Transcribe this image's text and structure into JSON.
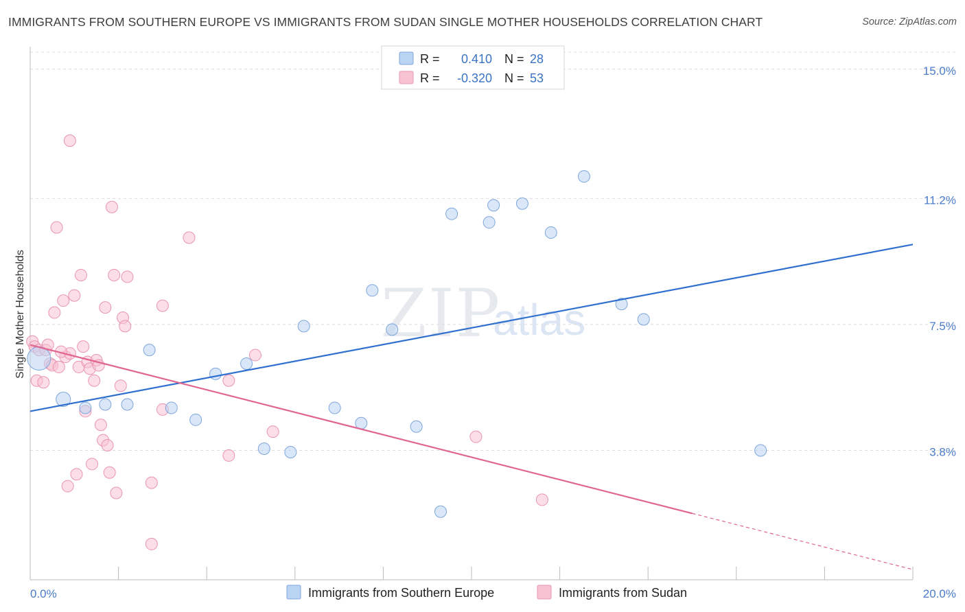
{
  "header": {
    "title": "IMMIGRANTS FROM SOUTHERN EUROPE VS IMMIGRANTS FROM SUDAN SINGLE MOTHER HOUSEHOLDS CORRELATION CHART",
    "source": "Source: ZipAtlas.com"
  },
  "watermark": {
    "zip": "ZIP",
    "atlas": "atlas"
  },
  "legend": {
    "rows": [
      {
        "r_label": "R =",
        "r_value": "0.410",
        "n_label": "N =",
        "n_value": "28"
      },
      {
        "r_label": "R =",
        "r_value": "-0.320",
        "n_label": "N =",
        "n_value": "53"
      }
    ]
  },
  "bottom_legend": {
    "series_a": "Immigrants from Southern Europe",
    "series_b": "Immigrants from Sudan"
  },
  "colors": {
    "blue_fill": "#b9d3f2",
    "blue_stroke": "#7ea6dc",
    "blue_line": "#2f6fce",
    "pink_fill": "#f7c3d3",
    "pink_stroke": "#e995b1",
    "pink_line": "#e06592",
    "grid": "#dcdcdc",
    "axis_label": "#4a7cc9"
  },
  "chart_data": {
    "type": "scatter",
    "title": "IMMIGRANTS FROM SOUTHERN EUROPE VS IMMIGRANTS FROM SUDAN SINGLE MOTHER HOUSEHOLDS CORRELATION CHART",
    "xlabel": "",
    "ylabel": "Single Mother Households",
    "xlim": [
      0,
      20
    ],
    "ylim": [
      0,
      15.5
    ],
    "x_tick_labels": [
      "0.0%",
      "20.0%"
    ],
    "y_ticks": [
      3.8,
      7.5,
      11.2,
      15.0
    ],
    "y_tick_labels": [
      "3.8%",
      "7.5%",
      "11.2%",
      "15.0%"
    ],
    "series": [
      {
        "name": "Immigrants from Southern Europe",
        "color": "#b9d3f2",
        "R": 0.41,
        "N": 28,
        "points": [
          [
            0.2,
            6.5,
            "large"
          ],
          [
            0.75,
            5.3,
            "mid"
          ],
          [
            1.25,
            5.05
          ],
          [
            1.7,
            5.15
          ],
          [
            2.2,
            5.15
          ],
          [
            2.7,
            6.75
          ],
          [
            3.2,
            5.05
          ],
          [
            3.75,
            4.7
          ],
          [
            4.2,
            6.05
          ],
          [
            4.9,
            6.35
          ],
          [
            5.3,
            3.85
          ],
          [
            5.9,
            3.75
          ],
          [
            6.2,
            7.45
          ],
          [
            6.9,
            5.05
          ],
          [
            7.5,
            4.6
          ],
          [
            7.75,
            8.5
          ],
          [
            8.2,
            7.35
          ],
          [
            8.75,
            4.5
          ],
          [
            9.3,
            2.0
          ],
          [
            9.55,
            10.75
          ],
          [
            10.4,
            10.5
          ],
          [
            10.5,
            11.0
          ],
          [
            11.15,
            11.05
          ],
          [
            11.8,
            10.2
          ],
          [
            12.55,
            11.85
          ],
          [
            13.4,
            8.1
          ],
          [
            13.9,
            7.65
          ],
          [
            16.55,
            3.8
          ]
        ],
        "trend": {
          "x": [
            0,
            20
          ],
          "y": [
            4.95,
            9.85
          ]
        }
      },
      {
        "name": "Immigrants from Sudan",
        "color": "#f7c3d3",
        "R": -0.32,
        "N": 53,
        "points": [
          [
            0.05,
            7.0
          ],
          [
            0.1,
            6.85
          ],
          [
            0.15,
            5.85
          ],
          [
            0.2,
            6.75
          ],
          [
            0.3,
            5.8
          ],
          [
            0.35,
            6.75
          ],
          [
            0.4,
            6.9
          ],
          [
            0.45,
            6.35
          ],
          [
            0.5,
            6.3
          ],
          [
            0.55,
            7.85
          ],
          [
            0.6,
            10.35
          ],
          [
            0.65,
            6.25
          ],
          [
            0.75,
            8.2
          ],
          [
            0.8,
            6.55
          ],
          [
            0.85,
            2.75
          ],
          [
            0.9,
            6.65
          ],
          [
            0.9,
            12.9
          ],
          [
            1.0,
            8.35
          ],
          [
            1.05,
            3.1
          ],
          [
            1.1,
            6.25
          ],
          [
            1.15,
            8.95
          ],
          [
            1.2,
            6.85
          ],
          [
            1.25,
            4.95
          ],
          [
            1.3,
            6.4
          ],
          [
            1.35,
            6.2
          ],
          [
            1.4,
            3.4
          ],
          [
            1.45,
            5.85
          ],
          [
            1.5,
            6.45
          ],
          [
            1.55,
            6.3
          ],
          [
            1.6,
            4.55
          ],
          [
            1.65,
            4.1
          ],
          [
            1.7,
            8.0
          ],
          [
            1.75,
            3.95
          ],
          [
            1.8,
            3.15
          ],
          [
            1.85,
            10.95
          ],
          [
            1.9,
            8.95
          ],
          [
            1.95,
            2.55
          ],
          [
            2.05,
            5.7
          ],
          [
            2.1,
            7.7
          ],
          [
            2.15,
            7.45
          ],
          [
            2.2,
            8.9
          ],
          [
            2.75,
            2.85
          ],
          [
            2.75,
            1.05
          ],
          [
            3.0,
            5.0
          ],
          [
            3.0,
            8.05
          ],
          [
            3.6,
            10.05
          ],
          [
            4.5,
            5.85
          ],
          [
            4.5,
            3.65
          ],
          [
            5.1,
            6.6
          ],
          [
            5.5,
            4.35
          ],
          [
            10.1,
            4.2
          ],
          [
            11.6,
            2.35
          ],
          [
            0.7,
            6.7
          ]
        ],
        "trend": {
          "x": [
            0,
            15
          ],
          "y": [
            6.9,
            1.95
          ]
        },
        "trend_extrapolated": {
          "x": [
            15,
            20
          ],
          "y": [
            1.95,
            0.3
          ]
        }
      }
    ]
  }
}
